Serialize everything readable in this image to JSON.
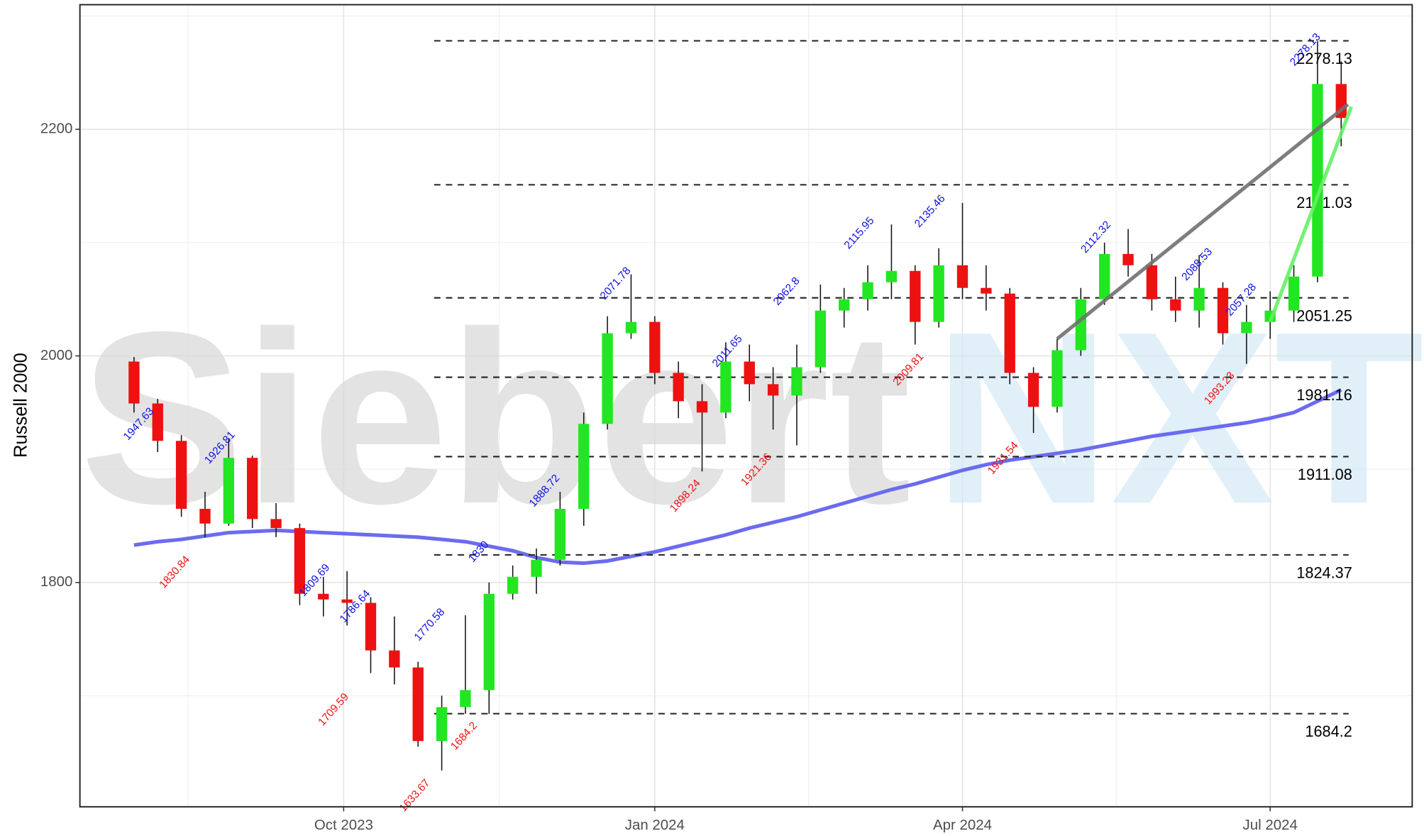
{
  "chart_data": {
    "type": "candlestick",
    "ylabel": "Russell 2000",
    "watermark": [
      "Siebert",
      "NXT"
    ],
    "xlim": [
      "2023-07-15",
      "2024-08-12"
    ],
    "xticks": [
      {
        "value": "2023-10-01",
        "label": "Oct 2023"
      },
      {
        "value": "2024-01-01",
        "label": "Jan 2024"
      },
      {
        "value": "2024-04-01",
        "label": "Apr 2024"
      },
      {
        "value": "2024-07-01",
        "label": "Jul 2024"
      }
    ],
    "ylim": [
      1602,
      2310
    ],
    "yticks": [
      1800,
      2000,
      2200
    ],
    "grid": true,
    "up_color": "#22e622",
    "down_color": "#ee1111",
    "x": [
      "2023-07-31",
      "2023-08-07",
      "2023-08-14",
      "2023-08-21",
      "2023-08-28",
      "2023-09-04",
      "2023-09-11",
      "2023-09-18",
      "2023-09-25",
      "2023-10-02",
      "2023-10-09",
      "2023-10-16",
      "2023-10-23",
      "2023-10-30",
      "2023-11-06",
      "2023-11-13",
      "2023-11-20",
      "2023-11-27",
      "2023-12-04",
      "2023-12-11",
      "2023-12-18",
      "2023-12-25",
      "2024-01-01",
      "2024-01-08",
      "2024-01-15",
      "2024-01-22",
      "2024-01-29",
      "2024-02-05",
      "2024-02-12",
      "2024-02-19",
      "2024-02-26",
      "2024-03-04",
      "2024-03-11",
      "2024-03-18",
      "2024-03-25",
      "2024-04-01",
      "2024-04-08",
      "2024-04-15",
      "2024-04-22",
      "2024-04-29",
      "2024-05-06",
      "2024-05-13",
      "2024-05-20",
      "2024-05-27",
      "2024-06-03",
      "2024-06-10",
      "2024-06-17",
      "2024-06-24",
      "2024-07-01",
      "2024-07-08",
      "2024-07-15",
      "2024-07-22"
    ],
    "open": [
      1995,
      1958,
      1925,
      1865,
      1852,
      1910,
      1856,
      1848,
      1790,
      1785,
      1782,
      1740,
      1725,
      1660,
      1690,
      1705,
      1790,
      1805,
      1820,
      1865,
      1940,
      2020,
      2030,
      1985,
      1960,
      1950,
      1995,
      1975,
      1965,
      1990,
      2040,
      2050,
      2065,
      2075,
      2030,
      2080,
      2060,
      2055,
      1985,
      1955,
      2005,
      2050,
      2090,
      2080,
      2050,
      2040,
      2060,
      2020,
      2030,
      2040,
      2070,
      2240
    ],
    "high": [
      1999,
      1962,
      1930,
      1880,
      1927,
      1912,
      1870,
      1852,
      1805,
      1810,
      1787,
      1770,
      1730,
      1700,
      1771,
      1800,
      1815,
      1830,
      1880,
      1950,
      2035,
      2072,
      2035,
      1995,
      1975,
      2012,
      2010,
      1990,
      2010,
      2063,
      2060,
      2080,
      2116,
      2080,
      2095,
      2135,
      2080,
      2060,
      1990,
      2015,
      2060,
      2100,
      2112,
      2090,
      2070,
      2089,
      2065,
      2045,
      2057,
      2080,
      2278,
      2260
    ],
    "low": [
      1950,
      1915,
      1858,
      1840,
      1850,
      1848,
      1840,
      1780,
      1770,
      1762,
      1720,
      1710,
      1655,
      1634,
      1684,
      1684,
      1785,
      1790,
      1815,
      1850,
      1935,
      2015,
      1975,
      1945,
      1898,
      1945,
      1960,
      1935,
      1921,
      1985,
      2025,
      2040,
      2050,
      2010,
      2025,
      2050,
      2040,
      1975,
      1932,
      1950,
      2000,
      2045,
      2070,
      2040,
      2030,
      2025,
      2010,
      1993,
      2015,
      2030,
      2065,
      2185
    ],
    "close": [
      1958,
      1925,
      1865,
      1852,
      1910,
      1856,
      1848,
      1790,
      1785,
      1782,
      1740,
      1725,
      1660,
      1690,
      1705,
      1790,
      1805,
      1820,
      1865,
      1940,
      2020,
      2030,
      1985,
      1960,
      1950,
      1995,
      1975,
      1965,
      1990,
      2040,
      2050,
      2065,
      2075,
      2030,
      2080,
      2060,
      2055,
      1985,
      1955,
      2005,
      2050,
      2090,
      2080,
      2050,
      2040,
      2060,
      2020,
      2030,
      2040,
      2070,
      2240,
      2210
    ],
    "ma": {
      "color": "#6b6bf0",
      "values": [
        1833,
        1836,
        1838,
        1841,
        1844,
        1845,
        1846,
        1845,
        1844,
        1843,
        1842,
        1841,
        1840,
        1838,
        1836,
        1832,
        1828,
        1822,
        1818,
        1817,
        1819,
        1823,
        1827,
        1832,
        1837,
        1842,
        1848,
        1853,
        1858,
        1864,
        1870,
        1876,
        1882,
        1887,
        1893,
        1899,
        1904,
        1908,
        1911,
        1914,
        1917,
        1921,
        1925,
        1929,
        1932,
        1935,
        1938,
        1941,
        1945,
        1950,
        1960,
        1970
      ]
    },
    "levels": [
      2278.13,
      2151.03,
      2051.25,
      1981.16,
      1911.08,
      1824.37,
      1684.2
    ],
    "highs": [
      {
        "x": "2023-08-06",
        "value": 1947.63
      },
      {
        "x": "2023-08-30",
        "value": 1926.81
      },
      {
        "x": "2023-09-27",
        "value": 1809.69
      },
      {
        "x": "2023-10-09",
        "value": 1786.64
      },
      {
        "x": "2023-10-31",
        "value": 1770.58
      },
      {
        "x": "2023-11-13",
        "value": 1830
      },
      {
        "x": "2023-12-04",
        "value": 1888.72
      },
      {
        "x": "2023-12-25",
        "value": 2071.78
      },
      {
        "x": "2024-01-27",
        "value": 2011.65
      },
      {
        "x": "2024-02-13",
        "value": 2062.8
      },
      {
        "x": "2024-03-06",
        "value": 2115.95
      },
      {
        "x": "2024-03-27",
        "value": 2135.46
      },
      {
        "x": "2024-05-15",
        "value": 2112.32
      },
      {
        "x": "2024-06-14",
        "value": 2088.53
      },
      {
        "x": "2024-06-27",
        "value": 2057.28
      },
      {
        "x": "2024-07-16",
        "value": 2278.13
      }
    ],
    "lows": [
      {
        "x": "2023-08-15",
        "value": 1830.84
      },
      {
        "x": "2023-10-01",
        "value": 1709.59
      },
      {
        "x": "2023-10-25",
        "value": 1633.67
      },
      {
        "x": "2023-11-08",
        "value": 1684.2
      },
      {
        "x": "2024-01-13",
        "value": 1898.24
      },
      {
        "x": "2024-02-03",
        "value": 1921.36
      },
      {
        "x": "2024-03-19",
        "value": 2009.81
      },
      {
        "x": "2024-04-16",
        "value": 1931.54
      },
      {
        "x": "2024-06-19",
        "value": 1993.23
      }
    ],
    "trendlines": [
      {
        "color": "#707070",
        "x": [
          "2024-04-29",
          "2024-07-24"
        ],
        "values": [
          2015,
          2222
        ]
      },
      {
        "color": "#66ee66",
        "x": [
          "2024-07-01",
          "2024-07-25"
        ],
        "values": [
          2030,
          2220
        ]
      }
    ]
  }
}
